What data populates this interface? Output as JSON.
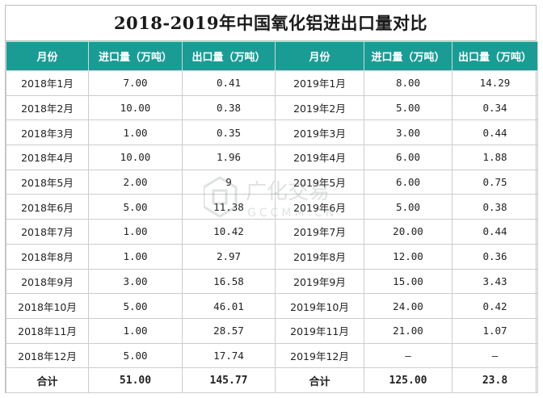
{
  "title": "2018-2019年中国氧化铝进出口量对比",
  "headers": [
    "月份",
    "进口量（万吨）",
    "出口量（万吨）",
    "月份",
    "进口量（万吨）",
    "出口量（万吨）"
  ],
  "rows": [
    [
      "2018年1月",
      "7.00",
      "0.41",
      "2019年1月",
      "8.00",
      "14.29"
    ],
    [
      "2018年2月",
      "10.00",
      "0.38",
      "2019年2月",
      "5.00",
      "0.34"
    ],
    [
      "2018年3月",
      "1.00",
      "0.35",
      "2019年3月",
      "3.00",
      "0.44"
    ],
    [
      "2018年4月",
      "10.00",
      "1.96",
      "2019年4月",
      "6.00",
      "1.88"
    ],
    [
      "2018年5月",
      "2.00",
      "9",
      "2019年5月",
      "6.00",
      "0.75"
    ],
    [
      "2018年6月",
      "5.00",
      "11.38",
      "2019年6月",
      "5.00",
      "0.38"
    ],
    [
      "2018年7月",
      "1.00",
      "10.42",
      "2019年7月",
      "20.00",
      "0.44"
    ],
    [
      "2018年8月",
      "1.00",
      "2.97",
      "2019年8月",
      "12.00",
      "0.36"
    ],
    [
      "2018年9月",
      "3.00",
      "16.58",
      "2019年9月",
      "15.00",
      "3.43"
    ],
    [
      "2018年10月",
      "5.00",
      "46.01",
      "2019年10月",
      "24.00",
      "0.42"
    ],
    [
      "2018年11月",
      "1.00",
      "28.57",
      "2019年11月",
      "21.00",
      "1.07"
    ],
    [
      "2018年12月",
      "5.00",
      "17.74",
      "2019年12月",
      "—",
      "—"
    ]
  ],
  "total": [
    "合计",
    "51.00",
    "145.77",
    "合计",
    "125.00",
    "23.8"
  ],
  "watermark": {
    "brand": "广化交易",
    "domain": "GCCMM.CN"
  },
  "colors": {
    "header_bg": "#1a9c95",
    "header_text": "#ffffff",
    "border": "#cccccc"
  }
}
